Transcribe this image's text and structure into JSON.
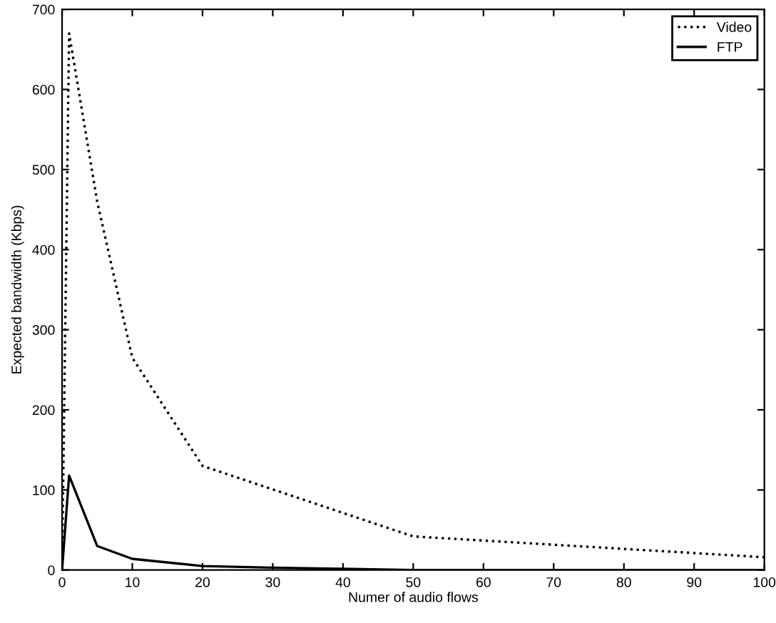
{
  "chart_data": {
    "type": "line",
    "xlabel": "Numer of audio flows",
    "ylabel": "Expected bandwidth (Kbps)",
    "xlim": [
      0,
      100
    ],
    "ylim": [
      0,
      700
    ],
    "xticks": [
      0,
      10,
      20,
      30,
      40,
      50,
      60,
      70,
      80,
      90,
      100
    ],
    "yticks": [
      0,
      100,
      200,
      300,
      400,
      500,
      600,
      700
    ],
    "grid": false,
    "legend": "top right",
    "series": [
      {
        "name": "Video",
        "color": "#000000",
        "line_style": "dotted",
        "x": [
          0,
          1,
          5,
          10,
          20,
          50,
          100
        ],
        "values": [
          0,
          670,
          460,
          265,
          130,
          42,
          16
        ]
      },
      {
        "name": "FTP",
        "color": "#000000",
        "line_style": "solid",
        "x": [
          0,
          1,
          5,
          10,
          20,
          30,
          50,
          100
        ],
        "values": [
          0,
          118,
          30,
          14,
          5,
          3,
          0,
          0
        ]
      }
    ]
  }
}
